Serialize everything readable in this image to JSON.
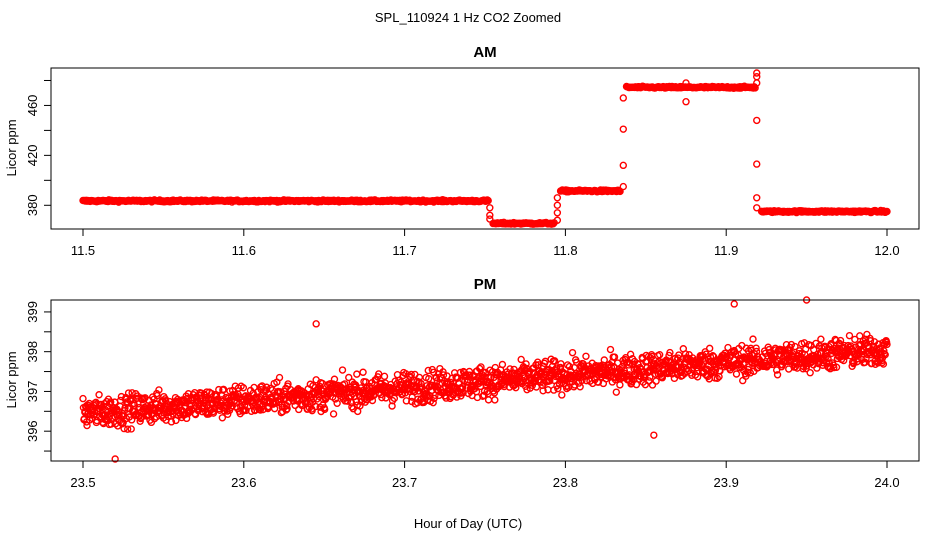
{
  "title": "SPL_110924  1 Hz CO2 Zoomed",
  "xlabel": "Hour of Day (UTC)",
  "chart_data": [
    {
      "type": "scatter",
      "title": "AM",
      "xlabel": "",
      "ylabel": "Licor ppm",
      "xlim": [
        11.5,
        12.0
      ],
      "ylim": [
        361,
        490
      ],
      "x_ticks": [
        "11.5",
        "11.6",
        "11.7",
        "11.8",
        "11.9",
        "12.0"
      ],
      "x_tick_values": [
        11.5,
        11.6,
        11.7,
        11.8,
        11.9,
        12.0
      ],
      "y_ticks": [
        "380",
        "420",
        "460"
      ],
      "y_tick_values": [
        380,
        420,
        460
      ],
      "color": "#ff0000",
      "marker": "open-circle",
      "segments": [
        {
          "x_start": 11.5,
          "x_end": 11.752,
          "value": 383.5
        },
        {
          "x_start": 11.755,
          "x_end": 11.793,
          "value": 365.5
        },
        {
          "x_start": 11.797,
          "x_end": 11.834,
          "value": 391.5
        },
        {
          "x_start": 11.838,
          "x_end": 11.918,
          "value": 474.5
        },
        {
          "x_start": 11.922,
          "x_end": 12.0,
          "value": 375.0
        }
      ],
      "transitions": [
        {
          "x": 11.753,
          "values": [
            378,
            372,
            369
          ]
        },
        {
          "x": 11.795,
          "values": [
            368,
            374,
            380,
            386
          ]
        },
        {
          "x": 11.836,
          "values": [
            395,
            412,
            441,
            466
          ]
        },
        {
          "x": 11.875,
          "values": [
            478,
            463
          ]
        },
        {
          "x": 11.919,
          "values": [
            486,
            483,
            478,
            448,
            413,
            386,
            378
          ]
        }
      ]
    },
    {
      "type": "scatter",
      "title": "PM",
      "xlabel": "",
      "ylabel": "Licor ppm",
      "xlim": [
        23.5,
        24.0
      ],
      "ylim": [
        395.25,
        399.3
      ],
      "x_ticks": [
        "23.5",
        "23.6",
        "23.7",
        "23.8",
        "23.9",
        "24.0"
      ],
      "x_tick_values": [
        23.5,
        23.6,
        23.7,
        23.8,
        23.9,
        24.0
      ],
      "y_ticks": [
        "396",
        "397",
        "398",
        "399"
      ],
      "y_tick_values": [
        396,
        397,
        398,
        399
      ],
      "color": "#ff0000",
      "marker": "open-circle",
      "trend": {
        "x": [
          23.5,
          24.0
        ],
        "y": [
          396.45,
          398.05
        ]
      },
      "spread": 0.5,
      "notable_points": [
        {
          "x": 23.52,
          "y": 395.3
        },
        {
          "x": 23.645,
          "y": 398.7
        },
        {
          "x": 23.855,
          "y": 395.9
        },
        {
          "x": 23.905,
          "y": 399.2
        },
        {
          "x": 23.95,
          "y": 399.3
        }
      ]
    }
  ]
}
